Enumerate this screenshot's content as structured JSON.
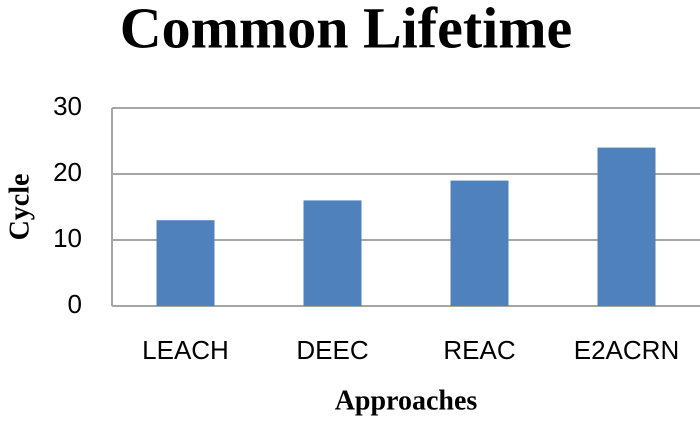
{
  "chart_data": {
    "type": "bar",
    "title": "Common Lifetime",
    "x_label": "Approaches",
    "y_label": "Cycle",
    "categories": [
      "LEACH",
      "DEEC",
      "REAC",
      "E2ACRN"
    ],
    "values": [
      13,
      16,
      19,
      24
    ],
    "color": "#4f81bd",
    "ylim": [
      0,
      30
    ],
    "yticks": [
      0,
      10,
      20,
      30
    ],
    "grid": true
  }
}
